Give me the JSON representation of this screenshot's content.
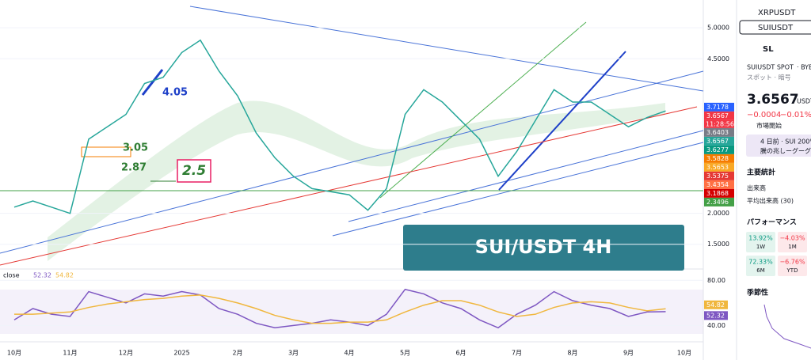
{
  "watchlist": [
    "XRPUSDT",
    "SUIUSDT"
  ],
  "symbol": {
    "tag": "SL",
    "name": "SUIUSDT SPOT",
    "exchange": "· BYB",
    "kind": "スポット · 暗号",
    "price": "3.6567",
    "currency": "USDT",
    "change": "−0.0004",
    "change_pct": "−0.01%",
    "status": "市場開始",
    "news_time": "4 日前 · SUI 200%",
    "news_text": "騰の兆しーグーグ"
  },
  "stats": {
    "title": "主要統計",
    "rows": [
      "出来高",
      "平均出来高 (30)"
    ]
  },
  "performance": {
    "title": "パフォーマンス",
    "cells": [
      {
        "value": "13.92%",
        "period": "1W"
      },
      {
        "value": "−4.03%",
        "period": "1M"
      },
      {
        "value": "72.33%",
        "period": "6M"
      },
      {
        "value": "−6.76%",
        "period": "YTD"
      }
    ]
  },
  "seasonality": "季節性",
  "banner": "SUI/USDT 4H",
  "chart_data": [
    {
      "type": "line",
      "categories": [
        "10月",
        null,
        null,
        "11月",
        null,
        null,
        "12月",
        null,
        null,
        "2025",
        null,
        null,
        "2月",
        null,
        null,
        "3月",
        null,
        null,
        "4月",
        null,
        null,
        "5月",
        null,
        null,
        "6月",
        null,
        null,
        "7月",
        null,
        null,
        "8月",
        null,
        null,
        "9月",
        null,
        null,
        "10月"
      ],
      "series": [
        {
          "color": "#26a69a",
          "values": [
            2.1,
            2.2,
            2.1,
            2.0,
            3.2,
            3.4,
            3.6,
            4.1,
            4.2,
            4.6,
            4.8,
            4.3,
            3.9,
            3.3,
            2.9,
            2.6,
            2.4,
            2.35,
            2.3,
            2.05,
            2.4,
            3.6,
            4.0,
            3.8,
            3.5,
            3.2,
            2.6,
            3.0,
            3.5,
            4.0,
            3.8,
            3.8,
            3.6,
            3.4,
            3.55,
            3.6567,
            null
          ]
        }
      ],
      "ylim": [
        1.1,
        5.45
      ],
      "yticks": [
        {
          "value": 1.5,
          "label": "1.5000"
        },
        {
          "value": 2,
          "label": "2.0000"
        },
        {
          "value": 4.5,
          "label": "4.5000"
        },
        {
          "value": 5,
          "label": "5.0000"
        }
      ],
      "price_tags": [
        {
          "value": 3.7178,
          "color": "#2962ff"
        },
        {
          "value": 3.6567,
          "color": "#f23645"
        },
        {
          "value": 3.6403,
          "color": "#787b86"
        },
        {
          "value": 3.6567,
          "color": "#26a69a"
        },
        {
          "value": 3.6277,
          "color": "#089981"
        },
        {
          "value": 3.5828,
          "color": "#f57c00"
        },
        {
          "value": 3.5653,
          "color": "#f9a825"
        },
        {
          "value": 3.5375,
          "color": "#e53935"
        },
        {
          "value": 3.4354,
          "color": "#ff7043"
        },
        {
          "value": 3.1868,
          "color": "#d50000"
        },
        {
          "value": 2.3496,
          "color": "#43a047"
        }
      ],
      "countdown": "11:28:56",
      "annotations": [
        "4.05",
        "3.05",
        "2.87",
        "2.5"
      ]
    },
    {
      "type": "line",
      "label": "close",
      "readouts": [
        52.32,
        54.82
      ],
      "series": [
        {
          "color": "#7e57c2",
          "values": [
            45,
            55,
            50,
            48,
            70,
            65,
            60,
            68,
            66,
            70,
            67,
            55,
            50,
            42,
            38,
            40,
            42,
            45,
            43,
            40,
            50,
            72,
            68,
            60,
            55,
            45,
            38,
            50,
            58,
            70,
            62,
            58,
            55,
            48,
            52,
            52.32,
            null
          ]
        },
        {
          "color": "#f0b73e",
          "values": [
            50,
            50,
            51,
            52,
            56,
            59,
            61,
            63,
            64,
            66,
            67,
            64,
            60,
            55,
            49,
            45,
            42,
            42,
            43,
            43,
            45,
            52,
            58,
            62,
            62,
            58,
            52,
            48,
            50,
            56,
            60,
            61,
            60,
            56,
            53,
            54.82,
            null
          ]
        }
      ],
      "ylim": [
        27,
        90
      ],
      "yticks": [
        {
          "value": 40,
          "label": "40.00"
        },
        {
          "value": 80,
          "label": "80.00"
        }
      ]
    }
  ]
}
